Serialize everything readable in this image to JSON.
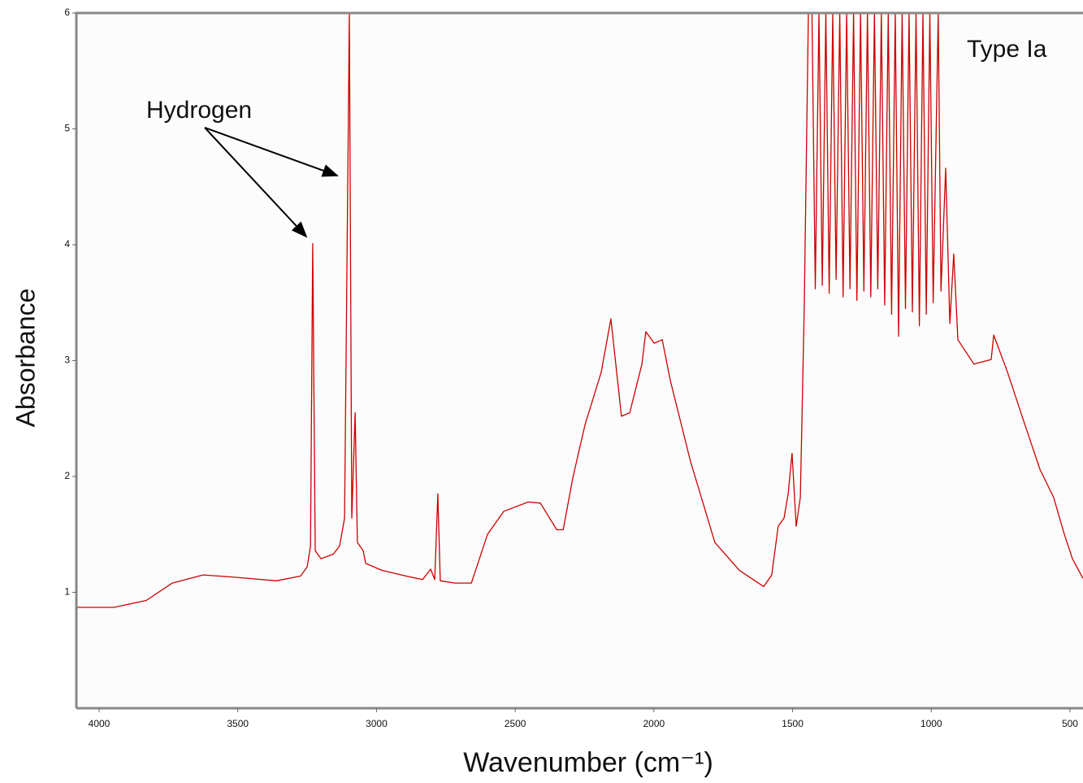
{
  "chart_data": {
    "type": "line",
    "annotations": [
      "Type Ia",
      "Hydrogen"
    ],
    "xlabel": "Wavenumber (cm⁻¹)",
    "ylabel": "Absorbance",
    "xlim": [
      4082,
      453
    ],
    "ylim": [
      0,
      6
    ],
    "xticks": [
      4000,
      3500,
      3000,
      2500,
      2000,
      1500,
      1000,
      500
    ],
    "yticks": [
      1,
      2,
      3,
      4,
      5,
      6
    ],
    "series": [
      {
        "color": "#cc0000",
        "x": [
          4082,
          3947,
          3830,
          3736,
          3625,
          3508,
          3361,
          3274,
          3250,
          3238,
          3230,
          3221,
          3200,
          3156,
          3133,
          3115,
          3098,
          3089,
          3077,
          3069,
          3048,
          3039,
          2981,
          2893,
          2834,
          2805,
          2790,
          2779,
          2770,
          2717,
          2658,
          2600,
          2541,
          2453,
          2409,
          2350,
          2327,
          2292,
          2248,
          2190,
          2155,
          2117,
          2087,
          2043,
          2029,
          1999,
          1970,
          1941,
          1868,
          1780,
          1692,
          1604,
          1575,
          1552,
          1531,
          1516,
          1502,
          1487,
          1472,
          1458,
          1443,
          1430,
          1418,
          1405,
          1393,
          1380,
          1368,
          1355,
          1343,
          1330,
          1318,
          1305,
          1293,
          1280,
          1268,
          1255,
          1243,
          1230,
          1218,
          1205,
          1193,
          1180,
          1168,
          1155,
          1143,
          1130,
          1118,
          1105,
          1093,
          1080,
          1068,
          1055,
          1043,
          1030,
          1018,
          1005,
          993,
          975,
          965,
          948,
          933,
          919,
          904,
          846,
          784,
          775,
          725,
          667,
          608,
          559,
          520,
          491,
          453
        ],
        "values": [
          0.87,
          0.87,
          0.93,
          1.08,
          1.15,
          1.13,
          1.1,
          1.14,
          1.22,
          1.4,
          4.01,
          1.36,
          1.29,
          1.33,
          1.4,
          1.64,
          6.0,
          1.64,
          2.55,
          1.43,
          1.36,
          1.25,
          1.19,
          1.14,
          1.11,
          1.2,
          1.11,
          1.85,
          1.1,
          1.08,
          1.08,
          1.5,
          1.7,
          1.78,
          1.77,
          1.54,
          1.54,
          1.99,
          2.45,
          2.9,
          3.36,
          2.52,
          2.55,
          2.97,
          3.25,
          3.15,
          3.18,
          2.83,
          2.13,
          1.43,
          1.19,
          1.05,
          1.15,
          1.57,
          1.64,
          1.85,
          2.2,
          1.57,
          1.82,
          3.46,
          6.0,
          6.0,
          3.62,
          6.0,
          3.65,
          6.0,
          3.58,
          6.0,
          3.7,
          6.0,
          3.55,
          6.0,
          3.62,
          6.0,
          3.52,
          6.0,
          3.6,
          6.0,
          3.55,
          6.0,
          3.62,
          6.0,
          3.48,
          6.0,
          3.4,
          6.0,
          3.21,
          6.0,
          3.45,
          6.0,
          3.42,
          6.0,
          3.3,
          6.0,
          3.4,
          6.0,
          3.5,
          6.0,
          3.6,
          4.66,
          3.32,
          3.92,
          3.18,
          2.97,
          3.01,
          3.22,
          2.9,
          2.48,
          2.06,
          1.82,
          1.5,
          1.29,
          1.12
        ]
      }
    ]
  }
}
